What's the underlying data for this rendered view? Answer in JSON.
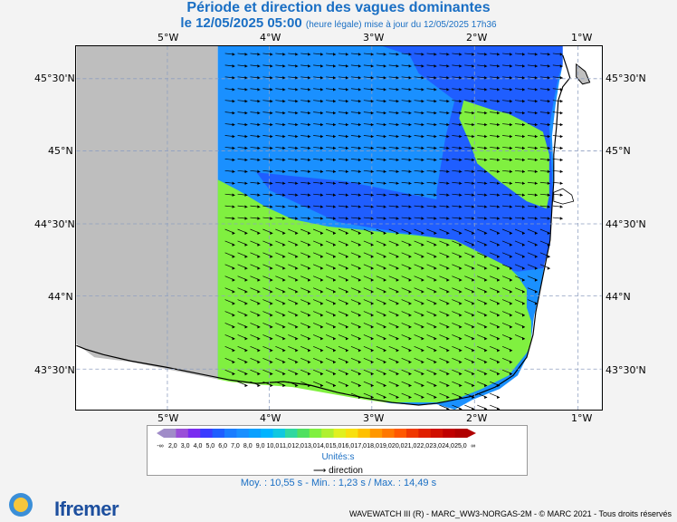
{
  "header": {
    "title": "Période et direction des vagues dominantes",
    "date_line": "le 12/05/2025 05:00",
    "update_note": "(heure légale) mise à jour du 12/05/2025 17h36"
  },
  "axes": {
    "lon_labels": [
      "5°W",
      "4°W",
      "3°W",
      "2°W",
      "1°W"
    ],
    "lat_labels": [
      "45°30'N",
      "45°N",
      "44°30'N",
      "44°N",
      "43°30'N"
    ]
  },
  "legend": {
    "ticks": [
      "-∞",
      "2,0",
      "3,0",
      "4,0",
      "5,0",
      "6,0",
      "7,0",
      "8,0",
      "9,0",
      "10,0",
      "11,0",
      "12,0",
      "13,0",
      "14,0",
      "15,0",
      "16,0",
      "17,0",
      "18,0",
      "19,0",
      "20,0",
      "21,0",
      "22,0",
      "23,0",
      "24,0",
      "25,0",
      "∞"
    ],
    "colors": [
      "#a08cc8",
      "#9a4fd8",
      "#7a2cf0",
      "#3b3bff",
      "#1f5eff",
      "#1a7dff",
      "#1a90ff",
      "#0aa0ff",
      "#00b4ff",
      "#10c8e0",
      "#30d8a0",
      "#50e060",
      "#80f040",
      "#b0f030",
      "#e0f020",
      "#f8e010",
      "#ffc000",
      "#ff9800",
      "#ff7800",
      "#ff5800",
      "#f03800",
      "#e02000",
      "#d01000",
      "#c00000",
      "#b00000"
    ],
    "units": "Unités:s",
    "direction_label": "direction"
  },
  "stats": "Moy. : 10,55 s   -   Min. : 1,23 s / Max. : 14,49 s",
  "footer": "WAVEWATCH III (R) - MARC_WW3-NORGAS-2M - © MARC 2021 - Tous droits réservés",
  "brand": "Ifremer",
  "region_colors": {
    "land": "#bebebe",
    "mask": "#ffffff",
    "blue": "#1a90ff",
    "darkblue": "#1f5eff",
    "green": "#80f040"
  }
}
